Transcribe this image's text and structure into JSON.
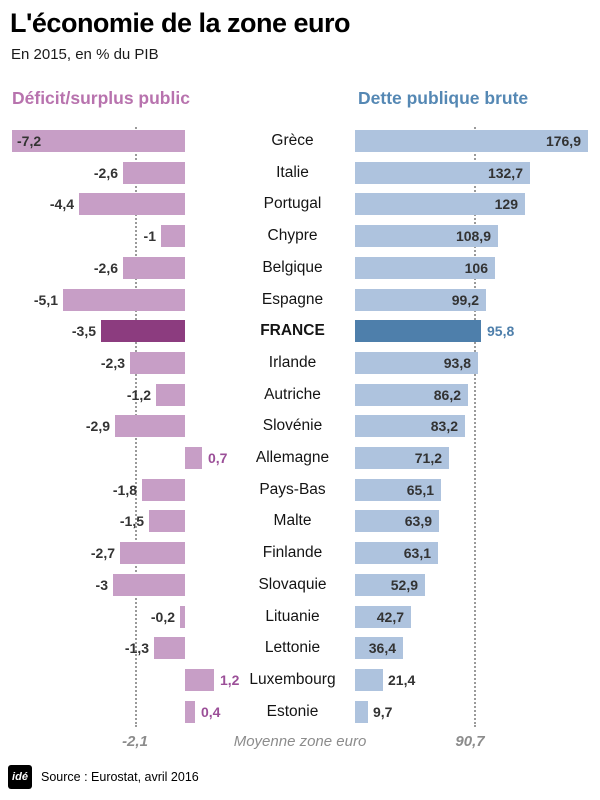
{
  "title": "L'économie de la zone euro",
  "subtitle": "En 2015, en % du PIB",
  "left_header": "Déficit/surplus public",
  "right_header": "Dette publique brute",
  "average_row": {
    "left_value": "-2,1",
    "label": "Moyenne zone euro",
    "right_value": "90,7"
  },
  "footer": {
    "logo": "idé",
    "source": "Source : Eurostat, avril 2016"
  },
  "colors": {
    "left_bar": "#c79ec6",
    "left_bar_highlight": "#8c3c7f",
    "left_header": "#b873ae",
    "positive_value": "#9b4f98",
    "right_bar": "#aec3de",
    "right_bar_highlight": "#4e7fab",
    "right_header": "#5588b4",
    "right_value_highlight": "#4e7fab",
    "value_text": "#333333",
    "country_text": "#141414",
    "average_text": "#8c8c8c",
    "dotted_line": "#9a9a9a"
  },
  "chart_data": {
    "type": "bar",
    "orientation": "horizontal",
    "title": "L'économie de la zone euro",
    "subtitle": "En 2015, en % du PIB",
    "unit": "% du PIB",
    "year": 2015,
    "categories": [
      "Grèce",
      "Italie",
      "Portugal",
      "Chypre",
      "Belgique",
      "Espagne",
      "FRANCE",
      "Irlande",
      "Autriche",
      "Slovénie",
      "Allemagne",
      "Pays-Bas",
      "Malte",
      "Finlande",
      "Slovaquie",
      "Lituanie",
      "Lettonie",
      "Luxembourg",
      "Estonie"
    ],
    "series": [
      {
        "name": "Déficit/surplus public",
        "values": [
          -7.2,
          -2.6,
          -4.4,
          -1,
          -2.6,
          -5.1,
          -3.5,
          -2.3,
          -1.2,
          -2.9,
          0.7,
          -1.8,
          -1.5,
          -2.7,
          -3,
          -0.2,
          -1.3,
          1.2,
          0.4
        ],
        "labels": [
          "-7,2",
          "-2,6",
          "-4,4",
          "-1",
          "-2,6",
          "-5,1",
          "-3,5",
          "-2,3",
          "-1,2",
          "-2,9",
          "0,7",
          "-1,8",
          "-1,5",
          "-2,7",
          "-3",
          "-0,2",
          "-1,3",
          "1,2",
          "0,4"
        ]
      },
      {
        "name": "Dette publique brute",
        "values": [
          176.9,
          132.7,
          129,
          108.9,
          106,
          99.2,
          95.8,
          93.8,
          86.2,
          83.2,
          71.2,
          65.1,
          63.9,
          63.1,
          52.9,
          42.7,
          36.4,
          21.4,
          9.7
        ],
        "labels": [
          "176,9",
          "132,7",
          "129",
          "108,9",
          "106",
          "99,2",
          "95,8",
          "93,8",
          "86,2",
          "83,2",
          "71,2",
          "65,1",
          "63,9",
          "63,1",
          "52,9",
          "42,7",
          "36,4",
          "21,4",
          "9,7"
        ]
      }
    ],
    "highlight_category": "FRANCE",
    "average": {
      "label": "Moyenne zone euro",
      "deficit": -2.1,
      "deficit_label": "-2,1",
      "debt": 90.7,
      "debt_label": "90,7"
    },
    "xlim_deficit": [
      -7.5,
      1.5
    ],
    "xlim_debt": [
      0,
      180
    ],
    "legend_position": "none",
    "grid": "average-dotted-lines-only",
    "source": "Source : Eurostat, avril 2016"
  }
}
